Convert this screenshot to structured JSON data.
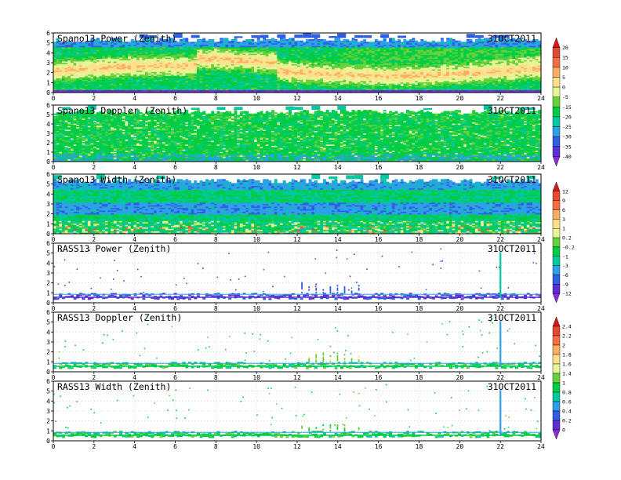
{
  "chart_data": [
    {
      "type": "heatmap",
      "title": "Spano13 Power (Zenith)",
      "date": "31OCT2011",
      "x_ticks": [
        "0",
        "2",
        "4",
        "6",
        "8",
        "10",
        "12",
        "14",
        "16",
        "18",
        "20",
        "22",
        "24"
      ],
      "y_ticks": [
        "0",
        "1",
        "2",
        "3",
        "4",
        "5",
        "6"
      ],
      "xlim": [
        0,
        24
      ],
      "ylim": [
        0,
        6
      ],
      "colorbar": "power_doppler",
      "profile": "power",
      "data_top_km": 5.5,
      "description_values": {
        "background_level": -15,
        "band_center_km": 2.2,
        "band_level": 10
      }
    },
    {
      "type": "heatmap",
      "title": "Spano13 Doppler (Zenith)",
      "date": "31OCT2011",
      "x_ticks": [
        "0",
        "2",
        "4",
        "6",
        "8",
        "10",
        "12",
        "14",
        "16",
        "18",
        "20",
        "22",
        "24"
      ],
      "y_ticks": [
        "0",
        "1",
        "2",
        "3",
        "4",
        "5",
        "6"
      ],
      "xlim": [
        0,
        24
      ],
      "ylim": [
        0,
        6
      ],
      "colorbar": "power_doppler",
      "profile": "doppler",
      "data_top_km": 5.5,
      "description_values": {
        "background_level": -15
      }
    },
    {
      "type": "heatmap",
      "title": "Spano13 Width (Zenith)",
      "date": "31OCT2011",
      "x_ticks": [
        "0",
        "2",
        "4",
        "6",
        "8",
        "10",
        "12",
        "14",
        "16",
        "18",
        "20",
        "22",
        "24"
      ],
      "y_ticks": [
        "0",
        "1",
        "2",
        "3",
        "4",
        "5",
        "6"
      ],
      "xlim": [
        0,
        24
      ],
      "ylim": [
        0,
        6
      ],
      "colorbar": "width_rass_power",
      "profile": "width",
      "data_top_km": 5.5
    },
    {
      "type": "heatmap",
      "title": "RASS13 Power (Zenith)",
      "date": "31OCT2011",
      "x_ticks": [
        "0",
        "2",
        "4",
        "6",
        "8",
        "10",
        "12",
        "14",
        "16",
        "18",
        "20",
        "22",
        "24"
      ],
      "y_ticks": [
        "0",
        "1",
        "2",
        "3",
        "4",
        "5",
        "6"
      ],
      "xlim": [
        0,
        24
      ],
      "ylim": [
        0,
        6
      ],
      "colorbar": "width_rass_power",
      "profile": "rass_power",
      "spike_hour": 22
    },
    {
      "type": "heatmap",
      "title": "RASS13 Doppler (Zenith)",
      "date": "31OCT2011",
      "x_ticks": [
        "0",
        "2",
        "4",
        "6",
        "8",
        "10",
        "12",
        "14",
        "16",
        "18",
        "20",
        "22",
        "24"
      ],
      "y_ticks": [
        "0",
        "1",
        "2",
        "3",
        "4",
        "5",
        "6"
      ],
      "xlim": [
        0,
        24
      ],
      "ylim": [
        0,
        6
      ],
      "colorbar": "rass_doppler_width",
      "profile": "rass_doppler",
      "spike_hour": 22
    },
    {
      "type": "heatmap",
      "title": "RASS13 Width (Zenith)",
      "date": "31OCT2011",
      "x_ticks": [
        "0",
        "2",
        "4",
        "6",
        "8",
        "10",
        "12",
        "14",
        "16",
        "18",
        "20",
        "22",
        "24"
      ],
      "y_ticks": [
        "0",
        "1",
        "2",
        "3",
        "4",
        "5",
        "6"
      ],
      "xlim": [
        0,
        24
      ],
      "ylim": [
        0,
        6
      ],
      "colorbar": "rass_doppler_width",
      "profile": "rass_width",
      "spike_hour": 22
    }
  ],
  "colorbars": {
    "power_doppler": {
      "labels": [
        "20",
        "15",
        "10",
        "5",
        "0",
        "-5",
        "-15",
        "-20",
        "-25",
        "-30",
        "-35",
        "-40"
      ],
      "colors": [
        "#d7191c",
        "#e34a33",
        "#f46d43",
        "#fdae61",
        "#fee08b",
        "#e6f598",
        "#66d13a",
        "#00cc44",
        "#00c8a0",
        "#2ea0e8",
        "#2f5fe0",
        "#5c2fd0",
        "#8a2be2"
      ]
    },
    "width_rass_power": {
      "labels": [
        "12",
        "9",
        "6",
        "3",
        "1",
        "0.2",
        "-0.2",
        "-1",
        "-3",
        "-6",
        "-9",
        "-12"
      ],
      "colors": [
        "#d7191c",
        "#e34a33",
        "#f46d43",
        "#fdae61",
        "#fee08b",
        "#e6f598",
        "#66d13a",
        "#00cc44",
        "#00c8a0",
        "#2ea0e8",
        "#2f5fe0",
        "#5c2fd0",
        "#8a2be2"
      ]
    },
    "rass_doppler_width": {
      "labels": [
        "2.4",
        "2.2",
        "2",
        "1.8",
        "1.6",
        "1.4",
        "1",
        "0.8",
        "0.6",
        "0.4",
        "0.2",
        "0"
      ],
      "colors": [
        "#d7191c",
        "#e34a33",
        "#f46d43",
        "#fdae61",
        "#fee08b",
        "#e6f598",
        "#66d13a",
        "#00cc44",
        "#00c8a0",
        "#2ea0e8",
        "#2f5fe0",
        "#5c2fd0",
        "#8a2be2"
      ]
    }
  }
}
